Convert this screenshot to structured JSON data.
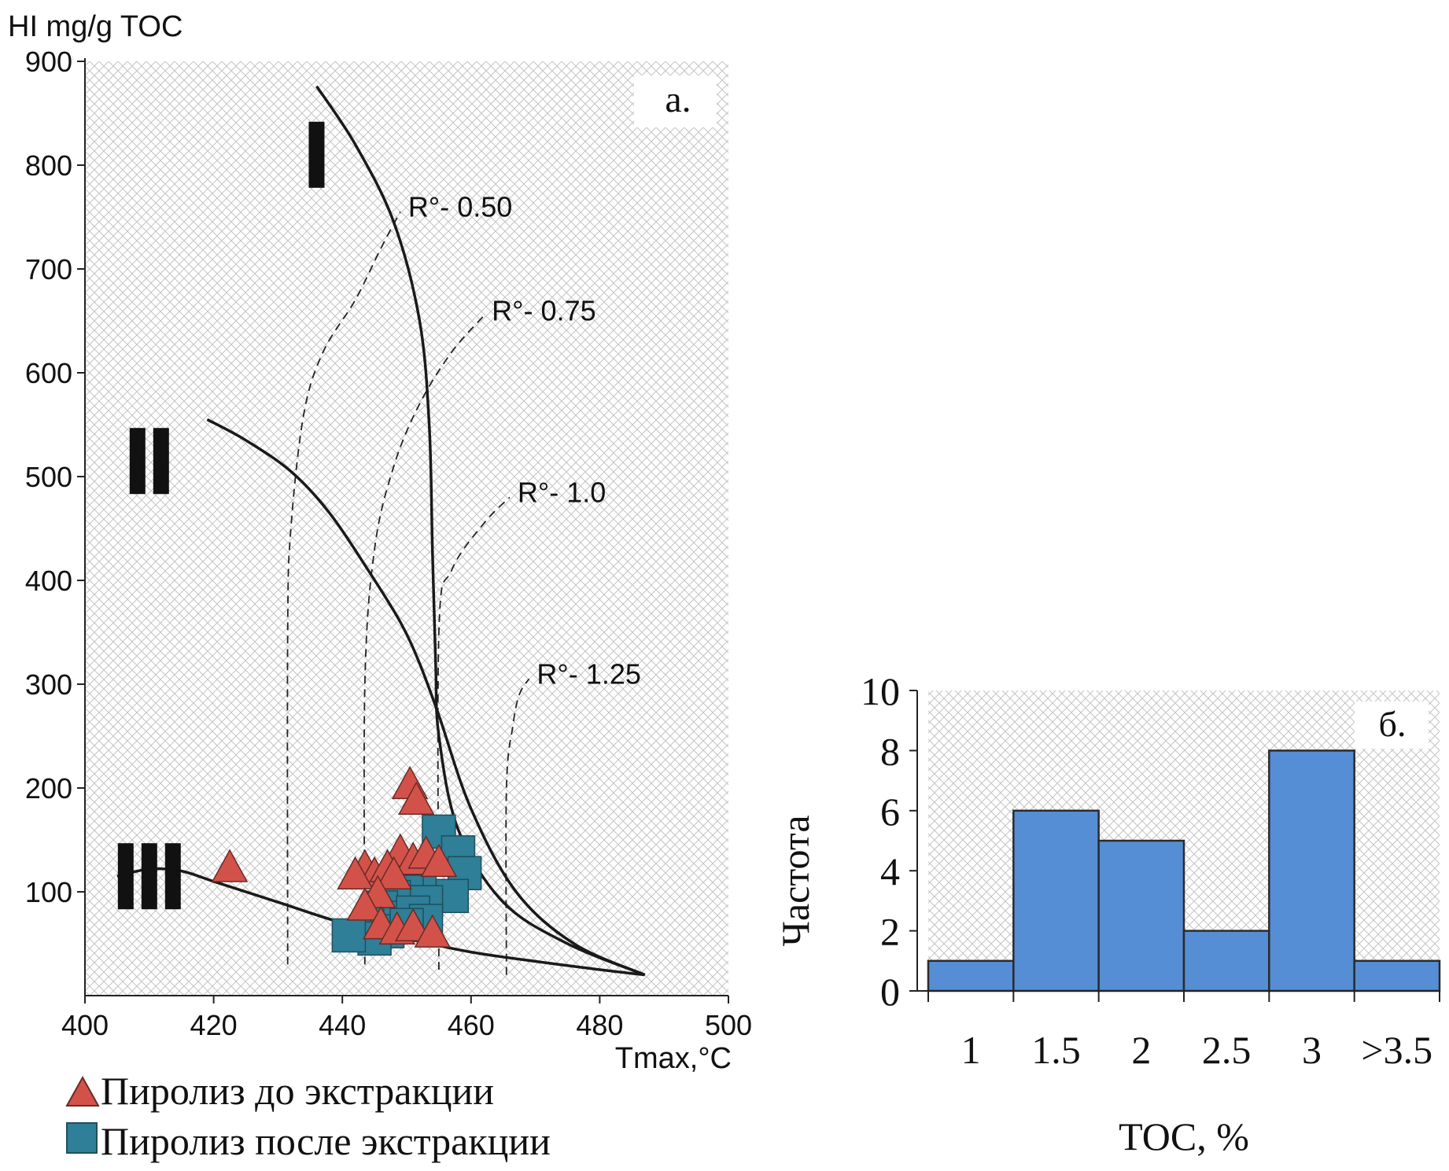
{
  "chart_data": [
    {
      "type": "scatter",
      "panel_label": "а.",
      "xlabel": "Tmax,°C",
      "ylabel": "HI mg/g TOC",
      "xlim": [
        400,
        500
      ],
      "ylim": [
        0,
        900
      ],
      "xticks": [
        400,
        420,
        440,
        460,
        480,
        500
      ],
      "yticks": [
        100,
        200,
        300,
        400,
        500,
        600,
        700,
        800,
        900
      ],
      "background": "crosshatch",
      "kerogen_labels": [
        "I",
        "II",
        "III"
      ],
      "kerogen_curves": [
        {
          "name": "I",
          "points": [
            [
              436,
              876
            ],
            [
              442,
              820
            ],
            [
              448,
              745
            ],
            [
              452,
              650
            ],
            [
              453.5,
              550
            ],
            [
              454,
              430
            ],
            [
              454.5,
              320
            ],
            [
              455,
              250
            ],
            [
              458,
              160
            ],
            [
              465,
              90
            ],
            [
              475,
              50
            ],
            [
              487,
              20
            ]
          ]
        },
        {
          "name": "II",
          "points": [
            [
              419,
              555
            ],
            [
              425,
              535
            ],
            [
              432,
              505
            ],
            [
              438,
              465
            ],
            [
              444,
              410
            ],
            [
              449,
              360
            ],
            [
              452,
              320
            ],
            [
              455,
              270
            ],
            [
              460,
              180
            ],
            [
              467,
              100
            ],
            [
              476,
              50
            ],
            [
              487,
              20
            ]
          ]
        },
        {
          "name": "III",
          "points": [
            [
              405,
              115
            ],
            [
              410,
              122
            ],
            [
              415,
              120
            ],
            [
              420,
              110
            ],
            [
              430,
              90
            ],
            [
              440,
              70
            ],
            [
              450,
              55
            ],
            [
              460,
              42
            ],
            [
              470,
              33
            ],
            [
              480,
              25
            ],
            [
              487,
              20
            ]
          ]
        }
      ],
      "ro_lines": [
        {
          "label": "R°- 0.50",
          "points": [
            [
              431.5,
              30
            ],
            [
              431.5,
              350
            ],
            [
              432,
              450
            ],
            [
              434,
              560
            ],
            [
              437,
              620
            ],
            [
              442,
              670
            ],
            [
              446,
              720
            ],
            [
              449,
              755
            ]
          ]
        },
        {
          "label": "R°- 0.75",
          "points": [
            [
              443.5,
              30
            ],
            [
              443.5,
              300
            ],
            [
              445,
              430
            ],
            [
              448,
              510
            ],
            [
              452,
              570
            ],
            [
              457,
              620
            ],
            [
              462,
              655
            ]
          ]
        },
        {
          "label": "R°- 1.0",
          "points": [
            [
              455,
              25
            ],
            [
              455,
              350
            ],
            [
              457,
              410
            ],
            [
              462,
              455
            ],
            [
              466,
              480
            ]
          ]
        },
        {
          "label": "R°- 1.25",
          "points": [
            [
              465.5,
              20
            ],
            [
              465.5,
              200
            ],
            [
              466.5,
              260
            ],
            [
              467.5,
              290
            ],
            [
              469,
              305
            ]
          ]
        }
      ],
      "series": [
        {
          "name": "Пиролиз до экстракции",
          "marker": "triangle",
          "color": "#d2524a",
          "points": [
            [
              422.5,
              125
            ],
            [
              450.5,
              205
            ],
            [
              451.5,
              190
            ],
            [
              443.5,
              125
            ],
            [
              445,
              118
            ],
            [
              442,
              118
            ],
            [
              449,
              140
            ],
            [
              451,
              132
            ],
            [
              453,
              138
            ],
            [
              455,
              130
            ],
            [
              447,
              125
            ],
            [
              448,
              118
            ],
            [
              445.5,
              100
            ],
            [
              443.5,
              88
            ],
            [
              446,
              70
            ],
            [
              448.5,
              65
            ],
            [
              451,
              68
            ],
            [
              454,
              62
            ]
          ]
        },
        {
          "name": "Пиролиз после экстракции",
          "marker": "square",
          "color": "#2e7f97",
          "points": [
            [
              455,
              158
            ],
            [
              458,
              138
            ],
            [
              459,
              118
            ],
            [
              457,
              96
            ],
            [
              452,
              110
            ],
            [
              450,
              100
            ],
            [
              453,
              90
            ],
            [
              448,
              95
            ],
            [
              446,
              85
            ],
            [
              449,
              75
            ],
            [
              451,
              80
            ],
            [
              453,
              72
            ],
            [
              447,
              62
            ],
            [
              445,
              55
            ],
            [
              441,
              58
            ],
            [
              450,
              68
            ]
          ]
        }
      ]
    },
    {
      "type": "bar",
      "panel_label": "б.",
      "xlabel": "TOC, %",
      "ylabel": "Частота",
      "categories": [
        "1",
        "1.5",
        "2",
        "2.5",
        "3",
        ">3.5"
      ],
      "values": [
        1,
        6,
        5,
        2,
        8,
        1
      ],
      "ylim": [
        0,
        10
      ],
      "yticks": [
        0,
        2,
        4,
        6,
        8,
        10
      ],
      "bar_color": "#558ed5",
      "background": "crosshatch"
    }
  ]
}
